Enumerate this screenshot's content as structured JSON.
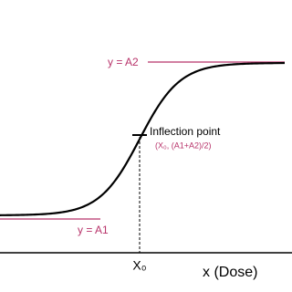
{
  "labels": {
    "upper_asymptote": "y = A2",
    "lower_asymptote": "y = A1",
    "inflection": "Inflection point",
    "inflection_coords": "(X₀, (A1+A2)/2)",
    "x0": "X₀",
    "x_axis": "x (Dose)"
  }
}
